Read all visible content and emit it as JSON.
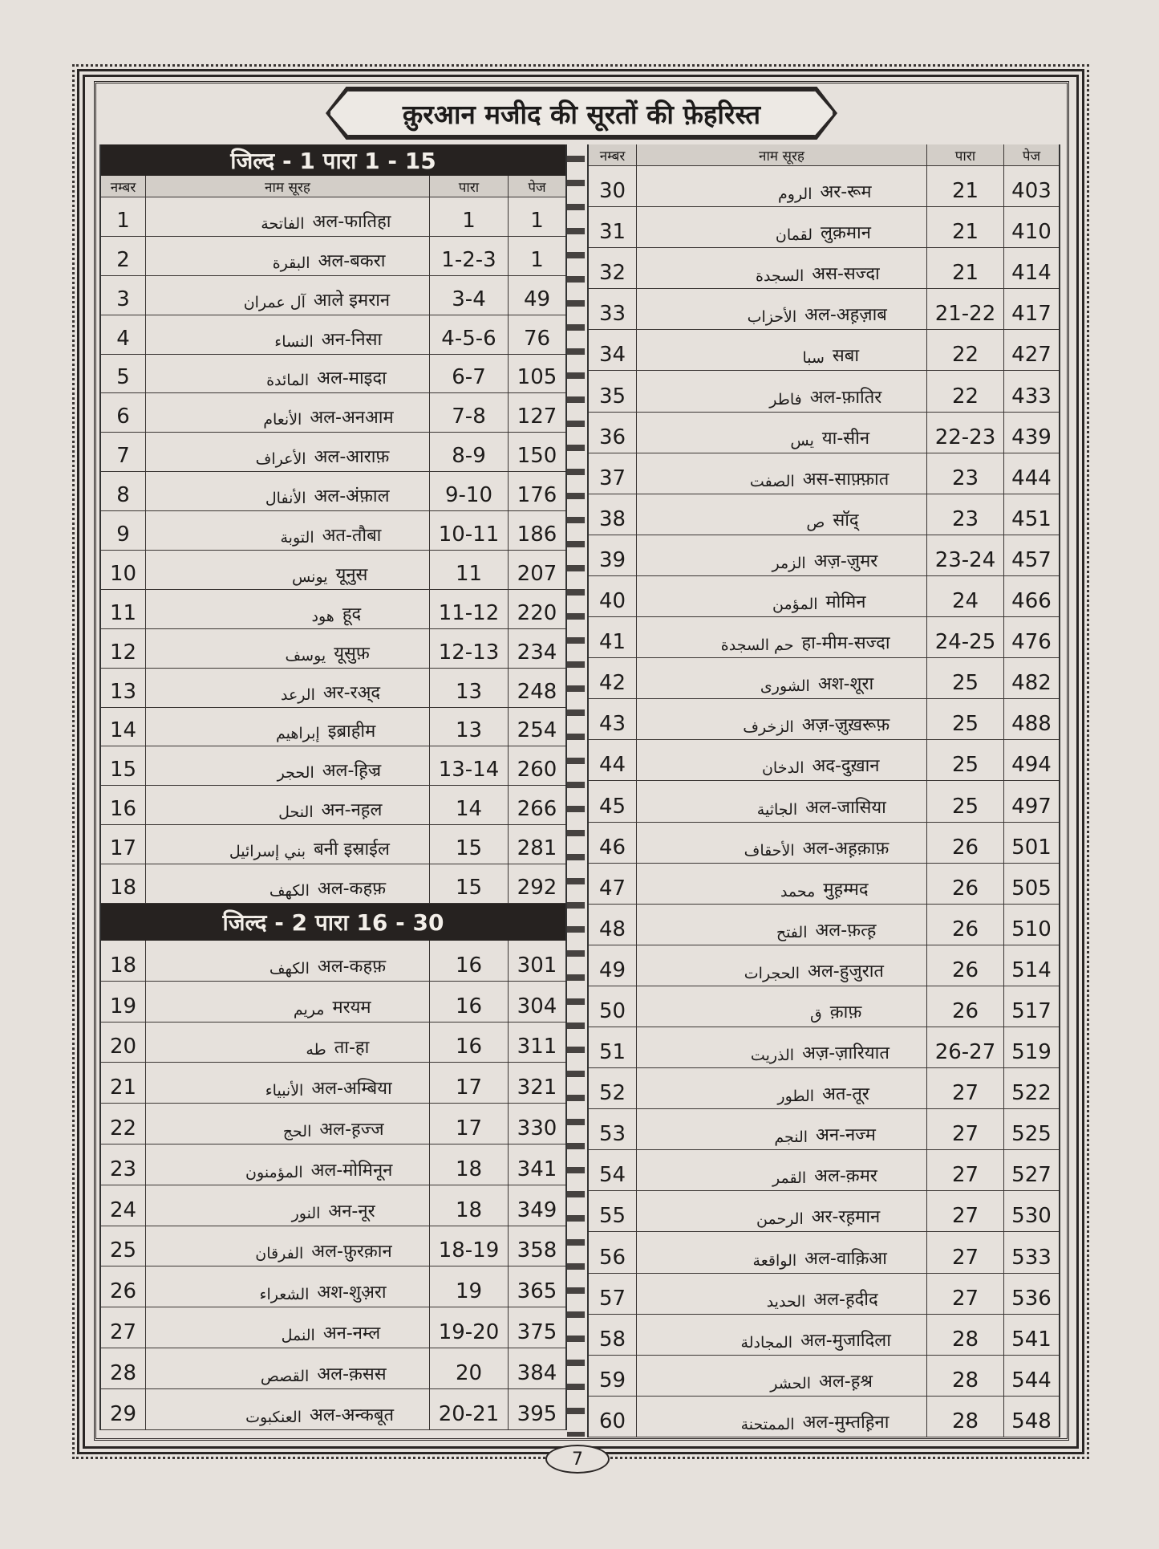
{
  "title": "क़ुरआन मजीद की सूरतों की फ़ेहरिस्त",
  "page_number": "7",
  "headers": {
    "number": "नम्बर",
    "name": "नाम सूरह",
    "para": "पारा",
    "page": "पेज"
  },
  "volume1": {
    "label": "जिल्द - 1  पारा 1 - 15",
    "rows": [
      [
        "1",
        "الفاتحة",
        "अल-फातिहा",
        "1",
        "1"
      ],
      [
        "2",
        "البقرة",
        "अल-बकरा",
        "1-2-3",
        "1"
      ],
      [
        "3",
        "آل عمران",
        "आले इमरान",
        "3-4",
        "49"
      ],
      [
        "4",
        "النساء",
        "अन-निसा",
        "4-5-6",
        "76"
      ],
      [
        "5",
        "المائدة",
        "अल-माइदा",
        "6-7",
        "105"
      ],
      [
        "6",
        "الأنعام",
        "अल-अनआम",
        "7-8",
        "127"
      ],
      [
        "7",
        "الأعراف",
        "अल-आराफ़",
        "8-9",
        "150"
      ],
      [
        "8",
        "الأنفال",
        "अल-अंफ़ाल",
        "9-10",
        "176"
      ],
      [
        "9",
        "التوبة",
        "अत-तौबा",
        "10-11",
        "186"
      ],
      [
        "10",
        "يونس",
        "यूनुस",
        "11",
        "207"
      ],
      [
        "11",
        "هود",
        "हूद",
        "11-12",
        "220"
      ],
      [
        "12",
        "يوسف",
        "यूसुफ़",
        "12-13",
        "234"
      ],
      [
        "13",
        "الرعد",
        "अर-रअ्द",
        "13",
        "248"
      ],
      [
        "14",
        "إبراهيم",
        "इब्राहीम",
        "13",
        "254"
      ],
      [
        "15",
        "الحجر",
        "अल-ह़िज्र",
        "13-14",
        "260"
      ],
      [
        "16",
        "النحل",
        "अन-नह़ल",
        "14",
        "266"
      ],
      [
        "17",
        "بني إسرائيل",
        "बनी इस्राईल",
        "15",
        "281"
      ],
      [
        "18",
        "الكهف",
        "अल-कहफ़",
        "15",
        "292"
      ]
    ]
  },
  "volume2": {
    "label": "जिल्द - 2 पारा 16 - 30",
    "rows": [
      [
        "18",
        "الكهف",
        "अल-कहफ़",
        "16",
        "301"
      ],
      [
        "19",
        "مريم",
        "मरयम",
        "16",
        "304"
      ],
      [
        "20",
        "طه",
        "ता-हा",
        "16",
        "311"
      ],
      [
        "21",
        "الأنبياء",
        "अल-अम्बिया",
        "17",
        "321"
      ],
      [
        "22",
        "الحج",
        "अल-ह़ज्ज",
        "17",
        "330"
      ],
      [
        "23",
        "المؤمنون",
        "अल-मोमिनून",
        "18",
        "341"
      ],
      [
        "24",
        "النور",
        "अन-नूर",
        "18",
        "349"
      ],
      [
        "25",
        "الفرقان",
        "अल-फ़ुरक़ान",
        "18-19",
        "358"
      ],
      [
        "26",
        "الشعراء",
        "अश-शुअ़रा",
        "19",
        "365"
      ],
      [
        "27",
        "النمل",
        "अन-नम्ल",
        "19-20",
        "375"
      ],
      [
        "28",
        "القصص",
        "अल-क़सस",
        "20",
        "384"
      ],
      [
        "29",
        "العنكبوت",
        "अल-अन्कबूत",
        "20-21",
        "395"
      ]
    ]
  },
  "right": {
    "rows": [
      [
        "30",
        "الروم",
        "अर-रूम",
        "21",
        "403"
      ],
      [
        "31",
        "لقمان",
        "लुक़मान",
        "21",
        "410"
      ],
      [
        "32",
        "السجدة",
        "अस-सज्दा",
        "21",
        "414"
      ],
      [
        "33",
        "الأحزاب",
        "अल-अह़ज़ाब",
        "21-22",
        "417"
      ],
      [
        "34",
        "سبا",
        "सबा",
        "22",
        "427"
      ],
      [
        "35",
        "فاطر",
        "अल-फ़ातिर",
        "22",
        "433"
      ],
      [
        "36",
        "يس",
        "या-सीन",
        "22-23",
        "439"
      ],
      [
        "37",
        "الصفت",
        "अस-साफ़्फ़ात",
        "23",
        "444"
      ],
      [
        "38",
        "ص",
        "सॉद्",
        "23",
        "451"
      ],
      [
        "39",
        "الزمر",
        "अज़-ज़ुमर",
        "23-24",
        "457"
      ],
      [
        "40",
        "المؤمن",
        "मोमिन",
        "24",
        "466"
      ],
      [
        "41",
        "حم السجدة",
        "हा-मीम-सज्दा",
        "24-25",
        "476"
      ],
      [
        "42",
        "الشورى",
        "अश-शूरा",
        "25",
        "482"
      ],
      [
        "43",
        "الزخرف",
        "अज़-ज़ुख़रूफ़",
        "25",
        "488"
      ],
      [
        "44",
        "الدخان",
        "अद-दुख़ान",
        "25",
        "494"
      ],
      [
        "45",
        "الجاثية",
        "अल-जासिया",
        "25",
        "497"
      ],
      [
        "46",
        "الأحقاف",
        "अल-अह़क़ाफ़",
        "26",
        "501"
      ],
      [
        "47",
        "محمد",
        "मुह़म्मद",
        "26",
        "505"
      ],
      [
        "48",
        "الفتح",
        "अल-फ़त्ह़",
        "26",
        "510"
      ],
      [
        "49",
        "الحجرات",
        "अल-हुजुरात",
        "26",
        "514"
      ],
      [
        "50",
        "ق",
        "क़ाफ़",
        "26",
        "517"
      ],
      [
        "51",
        "الذريت",
        "अज़-ज़ारियात",
        "26-27",
        "519"
      ],
      [
        "52",
        "الطور",
        "अत-तूर",
        "27",
        "522"
      ],
      [
        "53",
        "النجم",
        "अन-नज्म",
        "27",
        "525"
      ],
      [
        "54",
        "القمر",
        "अल-क़मर",
        "27",
        "527"
      ],
      [
        "55",
        "الرحمن",
        "अर-रह़मान",
        "27",
        "530"
      ],
      [
        "56",
        "الواقعة",
        "अल-वाक़िआ",
        "27",
        "533"
      ],
      [
        "57",
        "الحديد",
        "अल-ह़दीद",
        "27",
        "536"
      ],
      [
        "58",
        "المجادلة",
        "अल-मुजादिला",
        "28",
        "541"
      ],
      [
        "59",
        "الحشر",
        "अल-ह़श्र",
        "28",
        "544"
      ],
      [
        "60",
        "الممتحنة",
        "अल-मुम्तह़िना",
        "28",
        "548"
      ]
    ]
  }
}
